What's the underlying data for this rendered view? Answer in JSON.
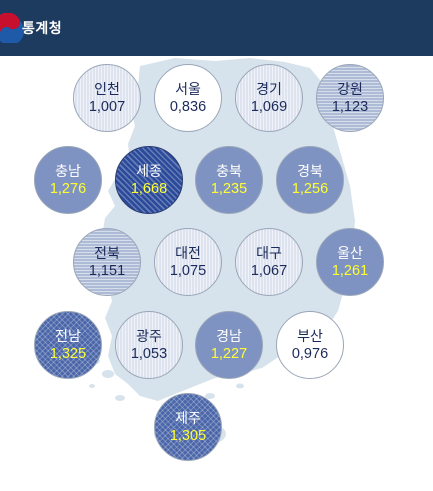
{
  "header": {
    "brand": "통계청"
  },
  "colors": {
    "header_bg": "#1d3a5f",
    "map_fill": "#d7e3ec",
    "highlight_value": "#ffff33"
  },
  "regions": [
    {
      "key": "incheon",
      "name": "인천",
      "value": "1,007",
      "level": 1
    },
    {
      "key": "seoul",
      "name": "서울",
      "value": "0,836",
      "level": 0
    },
    {
      "key": "gyeonggi",
      "name": "경기",
      "value": "1,069",
      "level": 1
    },
    {
      "key": "gangwon",
      "name": "강원",
      "value": "1,123",
      "level": 2
    },
    {
      "key": "chungnam",
      "name": "충남",
      "value": "1,276",
      "level": 3
    },
    {
      "key": "sejong",
      "name": "세종",
      "value": "1,668",
      "level": 5
    },
    {
      "key": "chungbuk",
      "name": "충북",
      "value": "1,235",
      "level": 3
    },
    {
      "key": "gyeongbuk",
      "name": "경북",
      "value": "1,256",
      "level": 3
    },
    {
      "key": "jeonbuk",
      "name": "전북",
      "value": "1,151",
      "level": 2
    },
    {
      "key": "daejeon",
      "name": "대전",
      "value": "1,075",
      "level": 1
    },
    {
      "key": "daegu",
      "name": "대구",
      "value": "1,067",
      "level": 1
    },
    {
      "key": "ulsan",
      "name": "울산",
      "value": "1,261",
      "level": 3
    },
    {
      "key": "jeonnam",
      "name": "전남",
      "value": "1,325",
      "level": 4
    },
    {
      "key": "gwangju",
      "name": "광주",
      "value": "1,053",
      "level": 1
    },
    {
      "key": "gyeongnam",
      "name": "경남",
      "value": "1,227",
      "level": 3
    },
    {
      "key": "busan",
      "name": "부산",
      "value": "0,976",
      "level": 0
    },
    {
      "key": "jeju",
      "name": "제주",
      "value": "1,305",
      "level": 4
    }
  ]
}
